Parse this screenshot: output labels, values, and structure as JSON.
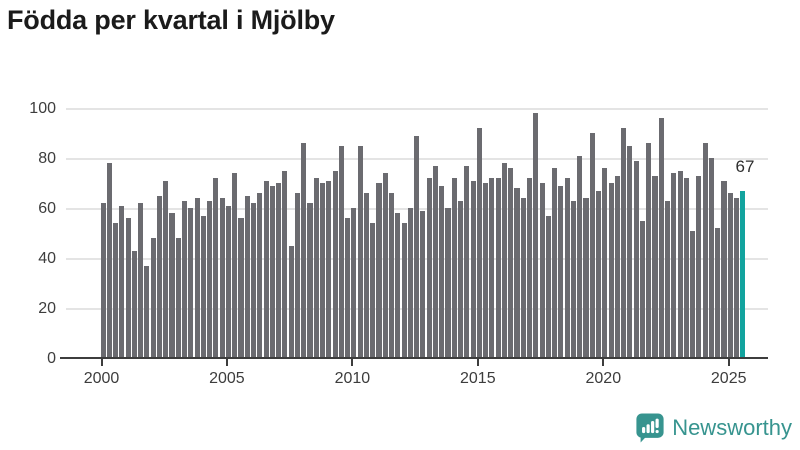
{
  "header": {
    "title": "Födda per kvartal i Mjölby"
  },
  "chart_data": {
    "type": "bar",
    "title": "Födda per kvartal i Mjölby",
    "x_unit": "quarter",
    "x_start": "2000 Q1",
    "x_end": "2025 Q3",
    "values": [
      62,
      78,
      54,
      61,
      56,
      43,
      62,
      37,
      48,
      65,
      71,
      58,
      48,
      63,
      60,
      64,
      57,
      63,
      72,
      64,
      61,
      74,
      56,
      65,
      62,
      66,
      71,
      69,
      70,
      75,
      45,
      66,
      86,
      62,
      72,
      70,
      71,
      75,
      85,
      56,
      60,
      85,
      66,
      54,
      70,
      74,
      66,
      58,
      54,
      60,
      89,
      59,
      72,
      77,
      69,
      60,
      72,
      63,
      77,
      71,
      92,
      70,
      72,
      72,
      78,
      76,
      68,
      64,
      72,
      98,
      70,
      57,
      76,
      69,
      72,
      63,
      81,
      64,
      90,
      67,
      76,
      70,
      73,
      92,
      85,
      79,
      55,
      86,
      73,
      96,
      63,
      74,
      75,
      72,
      51,
      73,
      86,
      80,
      52,
      71,
      66,
      64,
      67
    ],
    "highlight_last_bar": true,
    "last_bar_label": "67",
    "xticklabels": [
      "2000",
      "2005",
      "2010",
      "2015",
      "2020",
      "2025"
    ],
    "yticks": [
      0,
      20,
      40,
      60,
      80,
      100
    ],
    "ylim": [
      0,
      100
    ],
    "grid": "horizontal",
    "legend": "none",
    "bar_color": "#6b6b70",
    "highlight_color": "#12a39e"
  },
  "annotation": {
    "value": "67"
  },
  "footer": {
    "brand": "Newsworthy",
    "logo_icon": "bar-chart-speech-bubble-icon",
    "logo_color": "#37948f"
  }
}
